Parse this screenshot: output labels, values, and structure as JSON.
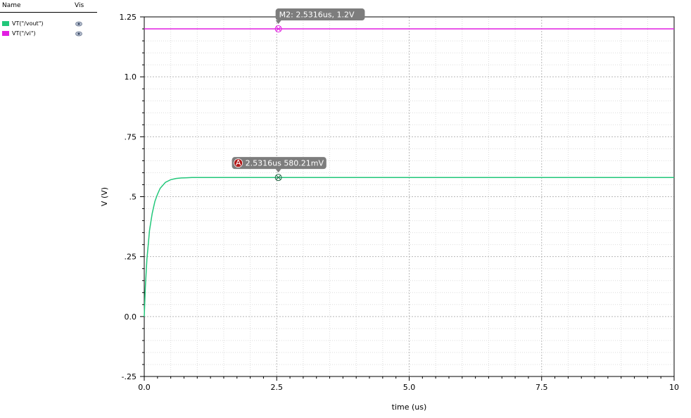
{
  "legend": {
    "header_name": "Name",
    "header_vis": "Vis",
    "items": [
      {
        "label": "VT(\"/vout\")",
        "color": "#22c77a",
        "vis_icon": "eye-icon"
      },
      {
        "label": "VT(\"/vi\")",
        "color": "#e21fe2",
        "vis_icon": "eye-icon"
      }
    ]
  },
  "chart_data": {
    "type": "line",
    "xlabel": "time (us)",
    "ylabel": "V (V)",
    "xlim": [
      0,
      10
    ],
    "ylim": [
      -0.25,
      1.25
    ],
    "x_ticks": [
      0,
      2.5,
      5.0,
      7.5,
      10
    ],
    "x_tick_labels": [
      "0.0",
      "2.5",
      "5.0",
      "7.5",
      "10"
    ],
    "y_ticks": [
      -0.25,
      0,
      0.25,
      0.5,
      0.75,
      1.0,
      1.25
    ],
    "y_tick_labels": [
      "-.25",
      "0.0",
      ".25",
      ".5",
      ".75",
      "1.0",
      "1.25"
    ],
    "grid": true,
    "series": [
      {
        "name": "VT(\"/vout\")",
        "color": "#22c77a",
        "x": [
          0,
          0.02,
          0.05,
          0.08,
          0.1,
          0.15,
          0.2,
          0.25,
          0.3,
          0.4,
          0.5,
          0.6,
          0.7,
          0.8,
          0.9,
          1.0,
          1.1,
          1.2,
          1.5,
          2.0,
          2.5316,
          3.0,
          4.0,
          5.0,
          6.0,
          7.0,
          8.0,
          9.0,
          10.0
        ],
        "y": [
          0,
          0.12,
          0.24,
          0.31,
          0.36,
          0.43,
          0.48,
          0.51,
          0.535,
          0.56,
          0.571,
          0.576,
          0.578,
          0.579,
          0.58,
          0.58,
          0.5802,
          0.5802,
          0.5802,
          0.5802,
          0.58021,
          0.5802,
          0.5802,
          0.5802,
          0.5802,
          0.5802,
          0.5802,
          0.5802,
          0.5802
        ]
      },
      {
        "name": "VT(\"/vi\")",
        "color": "#e21fe2",
        "x": [
          0,
          10
        ],
        "y": [
          1.2,
          1.2
        ]
      }
    ],
    "markers": [
      {
        "id": "M2",
        "text": "M2: 2.5316us, 1.2V",
        "x": 2.5316,
        "y": 1.2,
        "series": 1
      },
      {
        "id": "A",
        "badge": "A",
        "text": "2.5316us 580.21mV",
        "x": 2.5316,
        "y": 0.58021,
        "series": 0
      }
    ]
  }
}
